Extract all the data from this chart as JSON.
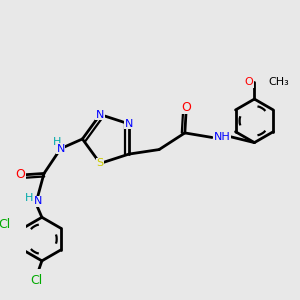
{
  "bg_color": "#e8e8e8",
  "atom_colors": {
    "C": "#000000",
    "N": "#0000ff",
    "O": "#ff0000",
    "S": "#cccc00",
    "Cl": "#00aa00",
    "H": "#00aaaa"
  },
  "bond_color": "#000000",
  "bond_width": 2.0
}
